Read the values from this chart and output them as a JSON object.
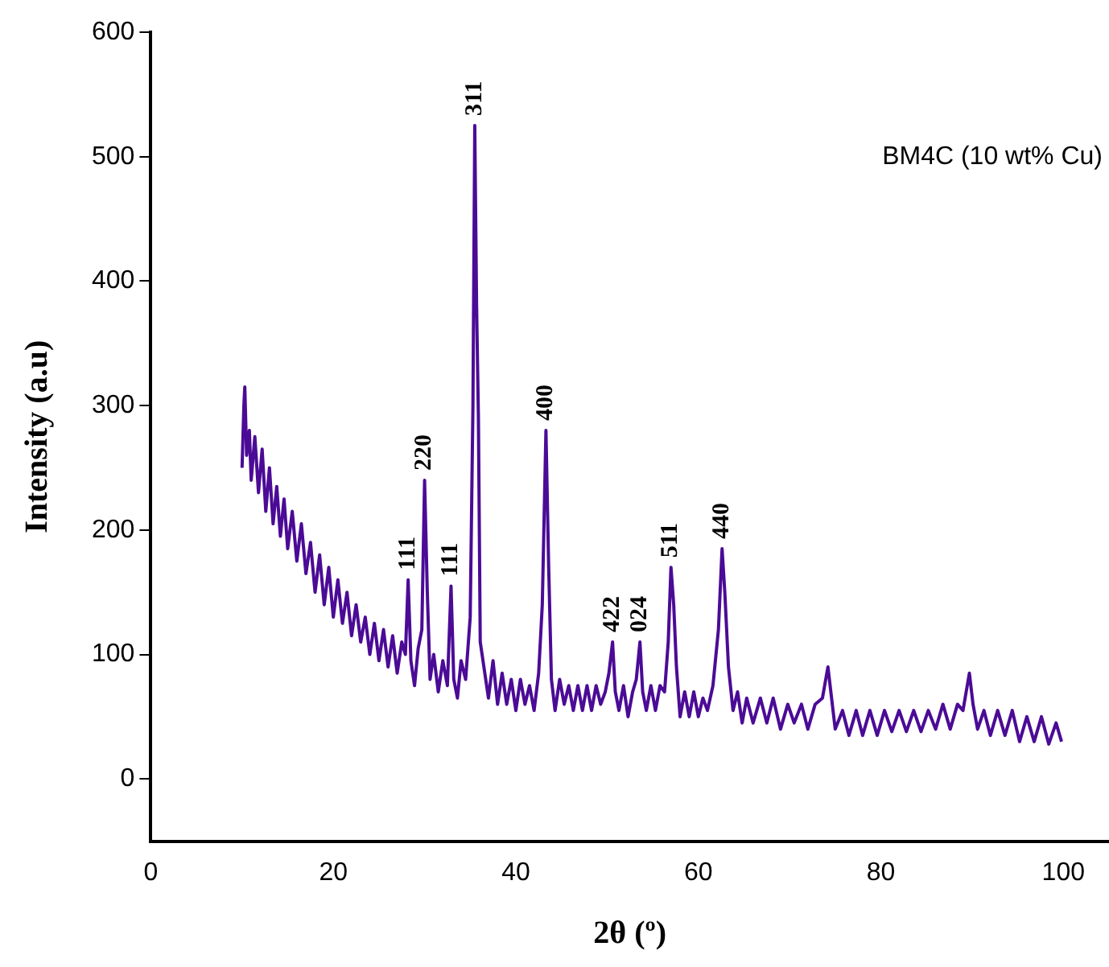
{
  "chart_data": {
    "type": "line",
    "xlabel": "2θ (º)",
    "ylabel": "Intensity (a.u)",
    "annotations": [
      "BM4C (10 wt% Cu)",
      {
        "text": "111",
        "x": 28.2,
        "y": 160
      },
      {
        "text": "220",
        "x": 30.0,
        "y": 240
      },
      {
        "text": "111",
        "x": 32.9,
        "y": 155
      },
      {
        "text": "311",
        "x": 35.5,
        "y": 525
      },
      {
        "text": "400",
        "x": 43.3,
        "y": 280
      },
      {
        "text": "422",
        "x": 50.6,
        "y": 110
      },
      {
        "text": "024",
        "x": 53.6,
        "y": 110
      },
      {
        "text": "511",
        "x": 57.0,
        "y": 170
      },
      {
        "text": "440",
        "x": 62.6,
        "y": 185
      }
    ],
    "x": [
      10.0,
      10.2,
      10.3,
      10.5,
      10.8,
      11.0,
      11.4,
      11.8,
      12.2,
      12.6,
      13.0,
      13.4,
      13.8,
      14.2,
      14.6,
      15.0,
      15.5,
      16.0,
      16.5,
      17.0,
      17.5,
      18.0,
      18.5,
      19.0,
      19.5,
      20.0,
      20.5,
      21.0,
      21.5,
      22.0,
      22.5,
      23.0,
      23.5,
      24.0,
      24.5,
      25.0,
      25.5,
      26.0,
      26.5,
      27.0,
      27.5,
      27.9,
      28.2,
      28.5,
      28.9,
      29.3,
      29.7,
      30.0,
      30.3,
      30.6,
      31.0,
      31.5,
      32.0,
      32.5,
      32.9,
      33.2,
      33.6,
      34.0,
      34.5,
      35.0,
      35.3,
      35.5,
      35.7,
      35.9,
      36.1,
      36.5,
      37.0,
      37.5,
      38.0,
      38.5,
      39.0,
      39.5,
      40.0,
      40.5,
      41.0,
      41.5,
      42.0,
      42.5,
      42.9,
      43.3,
      43.6,
      43.9,
      44.3,
      44.8,
      45.3,
      45.8,
      46.3,
      46.8,
      47.3,
      47.8,
      48.3,
      48.8,
      49.3,
      49.8,
      50.2,
      50.6,
      50.9,
      51.3,
      51.8,
      52.3,
      52.8,
      53.2,
      53.6,
      53.9,
      54.3,
      54.8,
      55.3,
      55.8,
      56.3,
      56.7,
      57.0,
      57.3,
      57.6,
      58.0,
      58.5,
      59.0,
      59.5,
      60.0,
      60.5,
      61.0,
      61.6,
      62.2,
      62.6,
      62.9,
      63.3,
      63.8,
      64.3,
      64.8,
      65.3,
      66.0,
      66.8,
      67.5,
      68.2,
      69.0,
      69.8,
      70.5,
      71.3,
      72.0,
      72.8,
      73.6,
      74.2,
      74.6,
      75.0,
      75.8,
      76.5,
      77.3,
      78.0,
      78.8,
      79.6,
      80.4,
      81.2,
      82.0,
      82.8,
      83.6,
      84.4,
      85.2,
      86.0,
      86.8,
      87.6,
      88.4,
      89.0,
      89.7,
      90.1,
      90.6,
      91.3,
      92.0,
      92.8,
      93.6,
      94.4,
      95.2,
      96.0,
      96.8,
      97.6,
      98.4,
      99.2,
      99.8
    ],
    "series": [
      {
        "color": "#4b0b96",
        "values": [
          250,
          300,
          315,
          260,
          280,
          240,
          275,
          230,
          265,
          215,
          250,
          205,
          235,
          195,
          225,
          185,
          215,
          175,
          205,
          165,
          190,
          150,
          180,
          140,
          170,
          130,
          160,
          125,
          150,
          115,
          140,
          110,
          130,
          100,
          125,
          95,
          120,
          90,
          115,
          85,
          110,
          100,
          160,
          95,
          75,
          105,
          120,
          240,
          150,
          80,
          100,
          70,
          95,
          75,
          155,
          80,
          65,
          95,
          80,
          130,
          300,
          525,
          380,
          290,
          110,
          90,
          65,
          95,
          60,
          85,
          60,
          80,
          55,
          80,
          60,
          75,
          55,
          85,
          140,
          280,
          170,
          80,
          55,
          80,
          60,
          75,
          55,
          75,
          55,
          75,
          55,
          75,
          60,
          70,
          85,
          110,
          70,
          55,
          75,
          50,
          70,
          80,
          110,
          70,
          55,
          75,
          55,
          75,
          70,
          110,
          170,
          140,
          90,
          50,
          70,
          50,
          70,
          50,
          65,
          55,
          75,
          120,
          185,
          150,
          90,
          55,
          70,
          45,
          65,
          45,
          65,
          45,
          65,
          40,
          60,
          45,
          60,
          40,
          60,
          65,
          90,
          65,
          40,
          55,
          35,
          55,
          35,
          55,
          35,
          55,
          38,
          55,
          38,
          55,
          38,
          55,
          40,
          60,
          40,
          60,
          55,
          85,
          60,
          40,
          55,
          35,
          55,
          35,
          55,
          30,
          50,
          30,
          50,
          28,
          45,
          30
        ]
      }
    ],
    "xlim": [
      0,
      105
    ],
    "xticks": [
      0,
      20,
      40,
      60,
      80,
      100
    ],
    "ylim": [
      -50,
      600
    ],
    "yticks": [
      0,
      100,
      200,
      300,
      400,
      500,
      600
    ],
    "grid": false,
    "legend": false,
    "line_style": "solid",
    "marker": "none"
  }
}
